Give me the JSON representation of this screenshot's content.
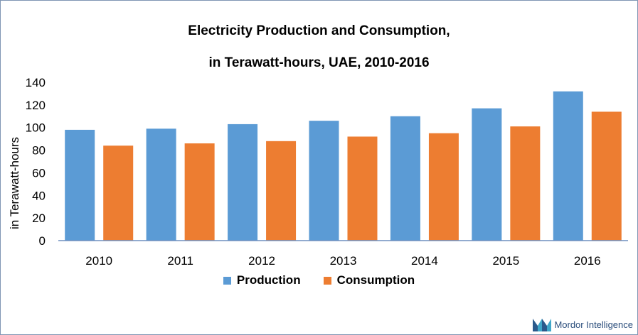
{
  "title_line1": "Electricity Production and Consumption,",
  "title_line2": "in Terawatt-hours, UAE, 2010-2016",
  "brand": "Mordor Intelligence",
  "chart_data": {
    "type": "bar",
    "categories": [
      "2010",
      "2011",
      "2012",
      "2013",
      "2014",
      "2015",
      "2016"
    ],
    "series": [
      {
        "name": "Production",
        "color": "#5b9bd5",
        "values": [
          98,
          99,
          103,
          106,
          110,
          117,
          132
        ]
      },
      {
        "name": "Consumption",
        "color": "#ed7d31",
        "values": [
          84,
          86,
          88,
          92,
          95,
          101,
          114
        ]
      }
    ],
    "ylabel": "in Terawatt-hours",
    "ylim": [
      0,
      140
    ],
    "yticks": [
      0,
      20,
      40,
      60,
      80,
      100,
      120,
      140
    ],
    "grid": false,
    "legend_position": "bottom"
  }
}
